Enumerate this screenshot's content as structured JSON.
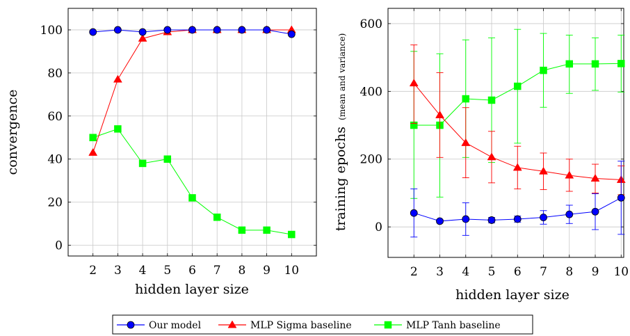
{
  "chart_data": [
    {
      "type": "line",
      "xlabel": "hidden layer size",
      "ylabel": "convergence",
      "x": [
        2,
        3,
        4,
        5,
        6,
        7,
        8,
        9,
        10
      ],
      "xlim": [
        1,
        11
      ],
      "ylim": [
        -5,
        110
      ],
      "yticks": [
        0,
        20,
        40,
        60,
        80,
        100
      ],
      "grid": true,
      "series": [
        {
          "name": "Our model",
          "color": "#0000ff",
          "marker": "circle",
          "values": [
            99,
            100,
            99,
            100,
            100,
            100,
            100,
            100,
            98
          ]
        },
        {
          "name": "MLP Sigma baseline",
          "color": "#ff0000",
          "marker": "triangle",
          "values": [
            43,
            77,
            96,
            99,
            100,
            100,
            100,
            100,
            100
          ]
        },
        {
          "name": "MLP Tanh baseline",
          "color": "#00ff00",
          "marker": "square",
          "values": [
            50,
            54,
            38,
            40,
            22,
            13,
            7,
            7,
            5
          ]
        }
      ]
    },
    {
      "type": "line",
      "xlabel": "hidden layer size",
      "ylabel_main": "training epochs",
      "ylabel_sub": "(mean and variance)",
      "x": [
        2,
        3,
        4,
        5,
        6,
        7,
        8,
        9,
        10
      ],
      "xlim": [
        1,
        10.1
      ],
      "ylim": [
        -90,
        645
      ],
      "yticks": [
        0,
        200,
        400,
        600
      ],
      "grid": true,
      "series": [
        {
          "name": "Our model",
          "color": "#0000ff",
          "marker": "circle",
          "values": [
            41,
            17,
            23,
            20,
            23,
            28,
            37,
            45,
            86
          ],
          "lower": [
            -30,
            12,
            -25,
            12,
            14,
            8,
            10,
            -8,
            -22
          ],
          "upper": [
            112,
            22,
            71,
            28,
            32,
            48,
            64,
            98,
            194
          ]
        },
        {
          "name": "MLP Sigma baseline",
          "color": "#ff0000",
          "marker": "triangle",
          "values": [
            424,
            330,
            248,
            206,
            175,
            164,
            152,
            143,
            139
          ],
          "lower": [
            305,
            205,
            145,
            130,
            112,
            110,
            105,
            100,
            95
          ],
          "upper": [
            537,
            455,
            352,
            282,
            238,
            218,
            200,
            185,
            180
          ]
        },
        {
          "name": "MLP Tanh baseline",
          "color": "#00ff00",
          "marker": "square",
          "values": [
            300,
            300,
            378,
            374,
            415,
            462,
            481,
            481,
            482
          ],
          "lower": [
            84,
            88,
            205,
            190,
            247,
            353,
            394,
            403,
            398
          ],
          "upper": [
            518,
            511,
            552,
            558,
            583,
            571,
            566,
            558,
            566
          ]
        }
      ]
    }
  ],
  "legend": [
    {
      "label": "Our model",
      "color": "#0000ff",
      "marker": "circle"
    },
    {
      "label": "MLP Sigma baseline",
      "color": "#ff0000",
      "marker": "triangle"
    },
    {
      "label": "MLP Tanh baseline",
      "color": "#00ff00",
      "marker": "square"
    }
  ]
}
